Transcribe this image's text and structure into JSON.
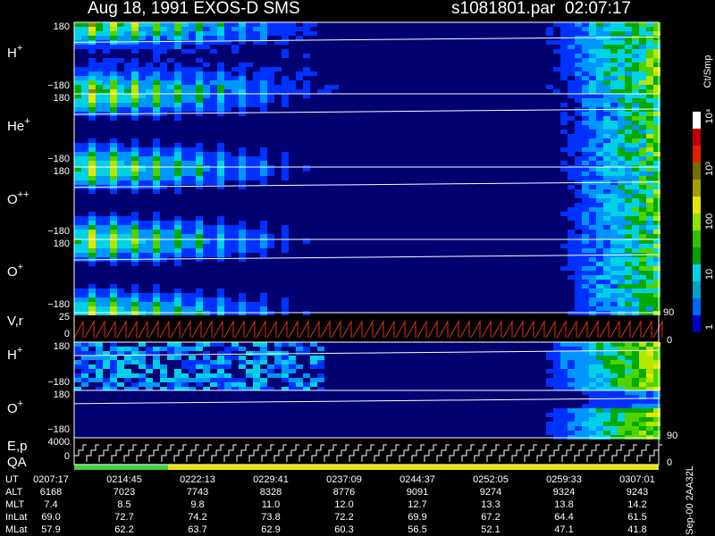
{
  "header": {
    "title": "Aug 18, 1991   EXOS-D SMS",
    "file": "s1081801.par",
    "time": "02:07:17"
  },
  "panels": [
    {
      "label": "H",
      "sup": "+",
      "top": "180",
      "bottom": "−180"
    },
    {
      "label": "He",
      "sup": "+",
      "top": "180",
      "bottom": "−180"
    },
    {
      "label": "O",
      "sup": "++",
      "top": "180",
      "bottom": "−180"
    },
    {
      "label": "O",
      "sup": "+",
      "top": "180",
      "bottom": "−180"
    },
    {
      "label": "V,r",
      "top": "25",
      "bottom": "0",
      "right_top": "90",
      "right_bottom": "0"
    },
    {
      "label": "H",
      "sup": "+",
      "top": "180",
      "bottom": "−180"
    },
    {
      "label": "O",
      "sup": "+",
      "top": "180",
      "bottom": "−180",
      "right_bottom": "90"
    },
    {
      "label": "E,p",
      "label2": "QA",
      "top": "4000",
      "bottom": "0",
      "right_bottom": "0"
    }
  ],
  "colorbar": {
    "unit": "Ct/Smp",
    "labels": [
      "10⁴",
      "10³",
      "100",
      "10",
      "1"
    ]
  },
  "table": {
    "rows": [
      {
        "label": "UT",
        "values": [
          "0207:17",
          "0214:45",
          "0222:13",
          "0229:41",
          "0237:09",
          "0244:37",
          "0252:05",
          "0259:33",
          "0307:01"
        ]
      },
      {
        "label": "ALT",
        "values": [
          "6168",
          "7023",
          "7743",
          "8328",
          "8776",
          "9091",
          "9274",
          "9324",
          "9243"
        ]
      },
      {
        "label": "MLT",
        "values": [
          "7.4",
          "8.5",
          "9.8",
          "11.0",
          "12.0",
          "12.7",
          "13.3",
          "13.8",
          "14.2"
        ]
      },
      {
        "label": "InLat",
        "values": [
          "69.0",
          "72.7",
          "74.2",
          "73.8",
          "72.2",
          "69.9",
          "67.2",
          "64.4",
          "61.5"
        ]
      },
      {
        "label": "MLat",
        "values": [
          "57.9",
          "62.2",
          "63.7",
          "62.9",
          "60.3",
          "56.5",
          "52.1",
          "47.1",
          "41.8"
        ]
      }
    ]
  },
  "side_note": "Sep-00 2AA32L"
}
